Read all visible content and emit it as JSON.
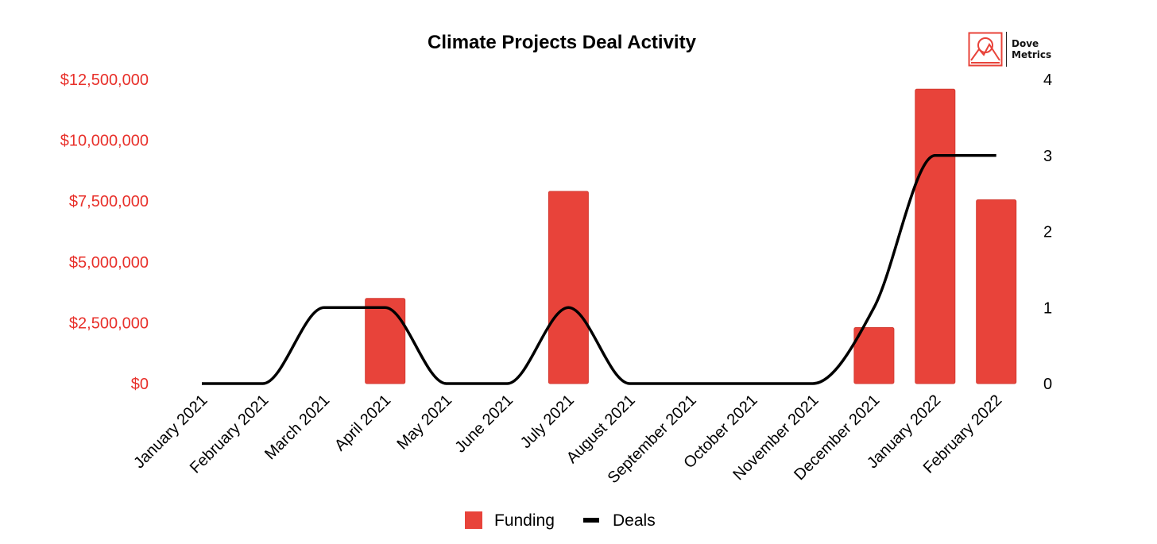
{
  "logo": {
    "line1": "Dove",
    "line2": "Metrics",
    "icon": "mountain-logo-icon"
  },
  "colors": {
    "funding": "#e8433a",
    "deals": "#000000",
    "left_axis_text": "#e8302a",
    "text": "#000000"
  },
  "chart_data": {
    "type": "bar",
    "title": "Climate Projects Deal Activity",
    "categories": [
      "January 2021",
      "February 2021",
      "March 2021",
      "April 2021",
      "May 2021",
      "June 2021",
      "July 2021",
      "August 2021",
      "September 2021",
      "October 2021",
      "November 2021",
      "December 2021",
      "January 2022",
      "February 2022"
    ],
    "series": [
      {
        "name": "Funding",
        "type": "bar",
        "axis": "left",
        "values": [
          0,
          0,
          0,
          3500000,
          0,
          0,
          7900000,
          0,
          0,
          0,
          0,
          2300000,
          12100000,
          7550000
        ]
      },
      {
        "name": "Deals",
        "type": "line",
        "smooth": true,
        "axis": "right",
        "values": [
          0,
          0,
          1,
          1,
          0,
          0,
          1,
          0,
          0,
          0,
          0,
          1,
          3,
          3
        ]
      }
    ],
    "y_left": {
      "ylim": [
        0,
        12500000
      ],
      "ticks": [
        "$0",
        "$2,500,000",
        "$5,000,000",
        "$7,500,000",
        "$10,000,000",
        "$12,500,000"
      ]
    },
    "y_right": {
      "ylim": [
        0,
        4
      ],
      "ticks": [
        "0",
        "1",
        "2",
        "3",
        "4"
      ]
    },
    "grid": false,
    "legend": {
      "position": "bottom",
      "items": [
        "Funding",
        "Deals"
      ]
    }
  }
}
